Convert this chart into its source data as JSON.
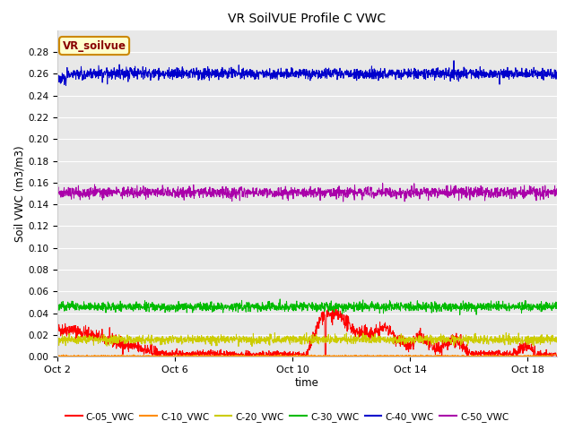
{
  "title": "VR SoilVUE Profile C VWC",
  "xlabel": "time",
  "ylabel": "Soil VWC (m3/m3)",
  "ylim": [
    0.0,
    0.3
  ],
  "yticks": [
    0.0,
    0.02,
    0.04,
    0.06,
    0.08,
    0.1,
    0.12,
    0.14,
    0.16,
    0.18,
    0.2,
    0.22,
    0.24,
    0.26,
    0.28
  ],
  "xtick_labels": [
    "Oct 2",
    "Oct 6",
    "Oct 10",
    "Oct 14",
    "Oct 18"
  ],
  "xtick_positions": [
    0,
    4,
    8,
    12,
    16
  ],
  "xlim": [
    0,
    17
  ],
  "series_colors": {
    "C-05_VWC": "#ff0000",
    "C-10_VWC": "#ff8c00",
    "C-20_VWC": "#cccc00",
    "C-30_VWC": "#00bb00",
    "C-40_VWC": "#0000cc",
    "C-50_VWC": "#aa00aa"
  },
  "legend_label": "VR_soilvue",
  "legend_box_facecolor": "#ffffcc",
  "legend_box_edgecolor": "#cc8800",
  "legend_text_color": "#880000",
  "plot_bg_color": "#e8e8e8",
  "grid_color": "#ffffff",
  "n_points": 2000
}
